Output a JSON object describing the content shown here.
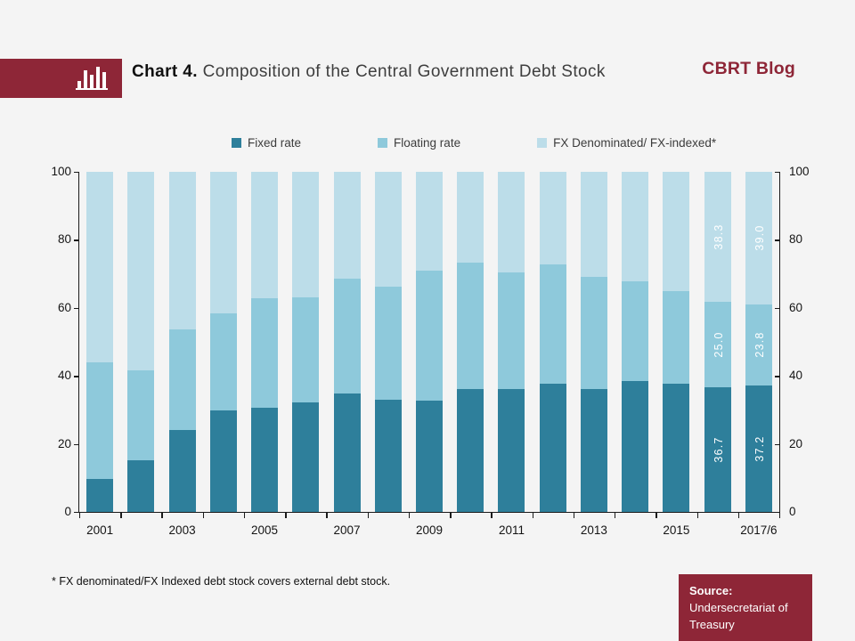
{
  "header": {
    "title_bold": "Chart 4.",
    "title_rest": "Composition of the Central Government Debt Stock",
    "brand": "CBRT Blog"
  },
  "colors": {
    "accent_red": "#8e2637",
    "fixed_rate": "#2e7f9b",
    "floating_rate": "#8ec9db",
    "fx_denominated": "#bcdde9",
    "background": "#f4f4f4",
    "axis": "#1a1a1a"
  },
  "chart_data": {
    "type": "bar",
    "stacked": true,
    "percent_stacked": true,
    "title": "Composition of the Central Government Debt Stock",
    "categories": [
      "2001",
      "2002",
      "2003",
      "2004",
      "2005",
      "2006",
      "2007",
      "2008",
      "2009",
      "2010",
      "2011",
      "2012",
      "2013",
      "2014",
      "2015",
      "2016",
      "2017/6"
    ],
    "series": [
      {
        "name": "Fixed rate",
        "color": "#2e7f9b",
        "values": [
          9.8,
          15.2,
          24.2,
          29.9,
          30.6,
          32.1,
          34.8,
          33.1,
          32.7,
          36.0,
          36.2,
          37.7,
          36.2,
          38.4,
          37.8,
          36.7,
          37.2
        ]
      },
      {
        "name": "Floating rate",
        "color": "#8ec9db",
        "values": [
          34.2,
          26.5,
          29.5,
          28.5,
          32.1,
          31.0,
          33.7,
          33.0,
          38.2,
          37.2,
          34.2,
          35.0,
          32.8,
          29.5,
          27.2,
          25.0,
          23.8
        ]
      },
      {
        "name": "FX Denominated/ FX-indexed*",
        "color": "#bcdde9",
        "values": [
          56.0,
          58.3,
          46.3,
          41.6,
          37.3,
          36.9,
          31.5,
          33.9,
          29.1,
          26.8,
          29.6,
          27.3,
          31.0,
          32.1,
          35.0,
          38.3,
          39.0
        ]
      }
    ],
    "data_label_categories": [
      "2016",
      "2017/6"
    ],
    "xlabel": "",
    "ylabel": "",
    "ylim": [
      0,
      100
    ],
    "yticks": [
      0,
      20,
      40,
      60,
      80,
      100
    ],
    "x_tick_labels_shown": [
      "2001",
      "2003",
      "2005",
      "2007",
      "2009",
      "2011",
      "2013",
      "2015",
      "2017/6"
    ],
    "grid": false,
    "legend_position": "top",
    "secondary_y_axis": true
  },
  "footnote": "* FX denominated/FX Indexed debt stock covers external debt stock.",
  "source": {
    "label": "Source:",
    "text": "Undersecretariat of Treasury"
  }
}
